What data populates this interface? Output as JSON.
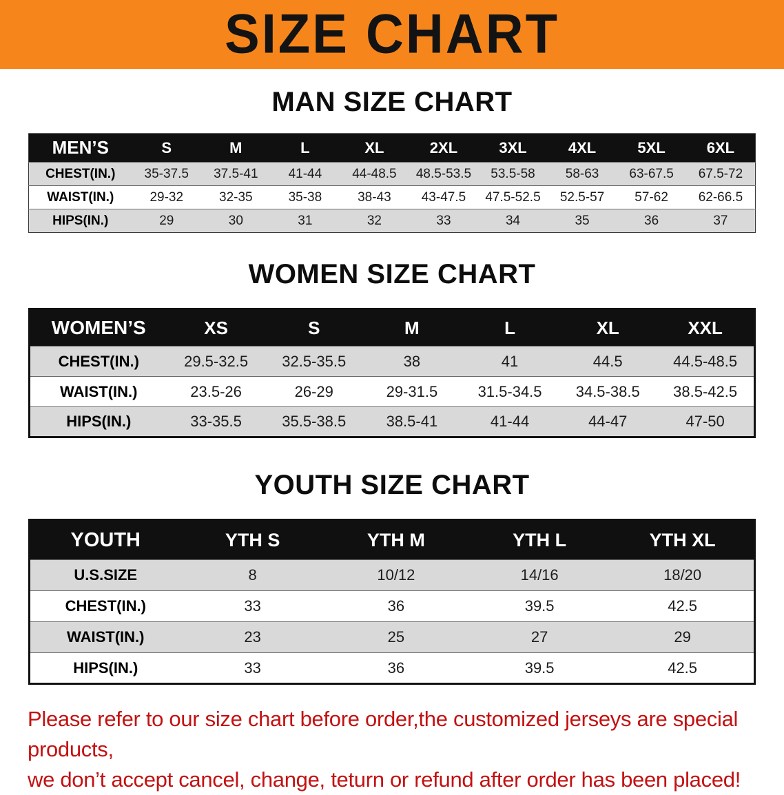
{
  "banner": {
    "title": "SIZE CHART",
    "bg_color": "#f6861c",
    "text_color": "#131313"
  },
  "tables": [
    {
      "title": "MAN SIZE CHART",
      "header": [
        "MEN’S",
        "S",
        "M",
        "L",
        "XL",
        "2XL",
        "3XL",
        "4XL",
        "5XL",
        "6XL"
      ],
      "rows": [
        [
          "CHEST(IN.)",
          "35-37.5",
          "37.5-41",
          "41-44",
          "44-48.5",
          "48.5-53.5",
          "53.5-58",
          "58-63",
          "63-67.5",
          "67.5-72"
        ],
        [
          "WAIST(IN.)",
          "29-32",
          "32-35",
          "35-38",
          "38-43",
          "43-47.5",
          "47.5-52.5",
          "52.5-57",
          "57-62",
          "62-66.5"
        ],
        [
          "HIPS(IN.)",
          "29",
          "30",
          "31",
          "32",
          "33",
          "34",
          "35",
          "36",
          "37"
        ]
      ]
    },
    {
      "title": "WOMEN SIZE CHART",
      "header": [
        "WOMEN’S",
        "XS",
        "S",
        "M",
        "L",
        "XL",
        "XXL"
      ],
      "rows": [
        [
          "CHEST(IN.)",
          "29.5-32.5",
          "32.5-35.5",
          "38",
          "41",
          "44.5",
          "44.5-48.5"
        ],
        [
          "WAIST(IN.)",
          "23.5-26",
          "26-29",
          "29-31.5",
          "31.5-34.5",
          "34.5-38.5",
          "38.5-42.5"
        ],
        [
          "HIPS(IN.)",
          "33-35.5",
          "35.5-38.5",
          "38.5-41",
          "41-44",
          "44-47",
          "47-50"
        ]
      ]
    },
    {
      "title": "YOUTH SIZE CHART",
      "header": [
        "YOUTH",
        "YTH S",
        "YTH M",
        "YTH L",
        "YTH XL"
      ],
      "rows": [
        [
          "U.S.SIZE",
          "8",
          "10/12",
          "14/16",
          "18/20"
        ],
        [
          "CHEST(IN.)",
          "33",
          "36",
          "39.5",
          "42.5"
        ],
        [
          "WAIST(IN.)",
          "23",
          "25",
          "27",
          "29"
        ],
        [
          "HIPS(IN.)",
          "33",
          "36",
          "39.5",
          "42.5"
        ]
      ]
    }
  ],
  "disclaimer": {
    "line1": "Please refer to our size chart before order,the customized jerseys are special products,",
    "line2": "we don’t accept cancel, change, teturn or refund after order has been placed!",
    "color": "#c41111"
  }
}
